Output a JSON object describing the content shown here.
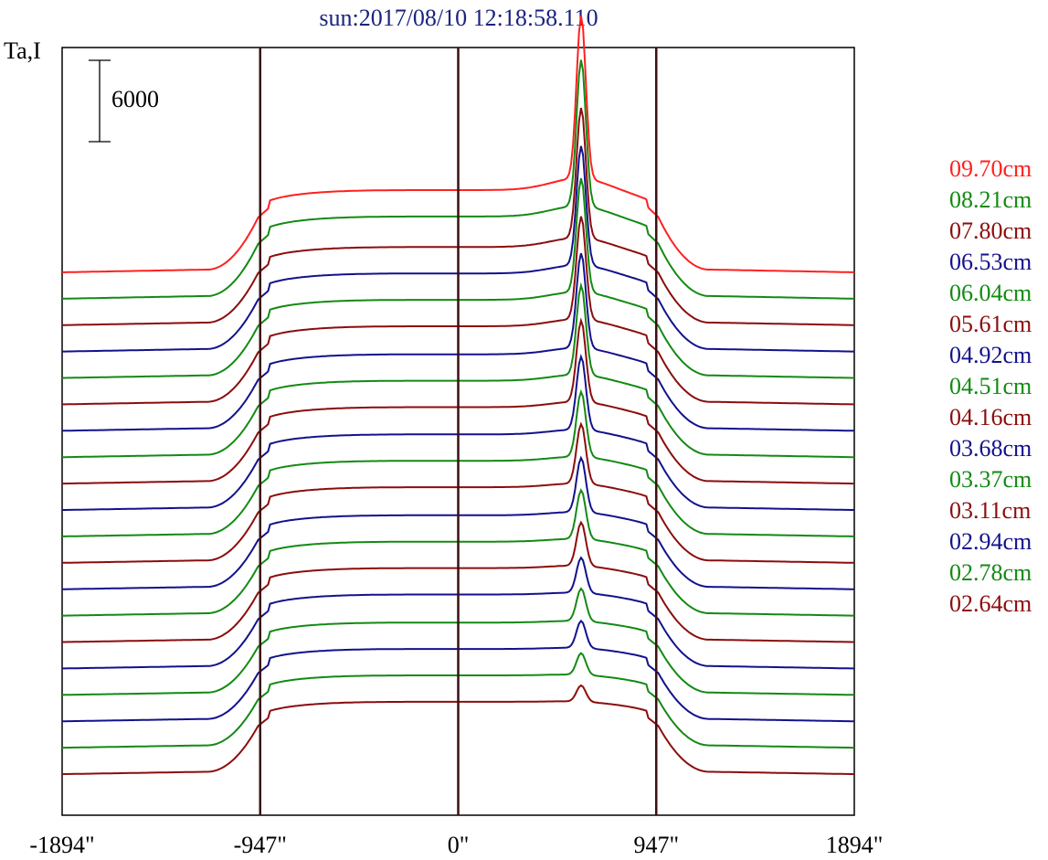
{
  "chart_data": {
    "type": "line",
    "title": "sun:2017/08/10 12:18:58.110",
    "ylabel": "Ta,I",
    "xlabel": "",
    "scale_bar_label": "6000",
    "scale_bar_value": 6000,
    "x_ticks": [
      -1894,
      -947,
      0,
      947,
      1894
    ],
    "x_tick_labels": [
      "-1894\"",
      "-947\"",
      "0\"",
      "947\"",
      "1894\""
    ],
    "xlim": [
      -1894,
      1894
    ],
    "vertical_lines": [
      -947,
      0,
      947
    ],
    "grid": false,
    "legend_position": "right",
    "series": [
      {
        "name": "09.70cm",
        "color": "#ff2020",
        "amp": 1.0
      },
      {
        "name": "08.21cm",
        "color": "#138a13",
        "amp": 1.0
      },
      {
        "name": "07.80cm",
        "color": "#8b0d0d",
        "amp": 0.95
      },
      {
        "name": "06.53cm",
        "color": "#12128c",
        "amp": 0.95
      },
      {
        "name": "06.04cm",
        "color": "#138a13",
        "amp": 0.95
      },
      {
        "name": "05.61cm",
        "color": "#8b0d0d",
        "amp": 0.95
      },
      {
        "name": "04.92cm",
        "color": "#12128c",
        "amp": 0.93
      },
      {
        "name": "04.51cm",
        "color": "#138a13",
        "amp": 0.93
      },
      {
        "name": "04.16cm",
        "color": "#8b0d0d",
        "amp": 0.93
      },
      {
        "name": "03.68cm",
        "color": "#12128c",
        "amp": 0.92
      },
      {
        "name": "03.37cm",
        "color": "#138a13",
        "amp": 0.92
      },
      {
        "name": "03.11cm",
        "color": "#8b0d0d",
        "amp": 0.92
      },
      {
        "name": "02.94cm",
        "color": "#12128c",
        "amp": 0.9
      },
      {
        "name": "02.78cm",
        "color": "#138a13",
        "amp": 0.9
      },
      {
        "name": "02.64cm",
        "color": "#8b0d0d",
        "amp": 0.9
      },
      {
        "name": "",
        "color": "#12128c",
        "amp": 0.9
      },
      {
        "name": "",
        "color": "#138a13",
        "amp": 0.88
      },
      {
        "name": "",
        "color": "#12128c",
        "amp": 0.88
      },
      {
        "name": "",
        "color": "#138a13",
        "amp": 0.88
      },
      {
        "name": "",
        "color": "#8b0d0d",
        "amp": 0.88
      }
    ],
    "source_peaks": [
      12000,
      10800,
      9600,
      8800,
      8400,
      7600,
      7000,
      6600,
      6000,
      5400,
      4800,
      4400,
      4000,
      3600,
      3200,
      2600,
      2400,
      2000,
      1600,
      1200
    ]
  }
}
